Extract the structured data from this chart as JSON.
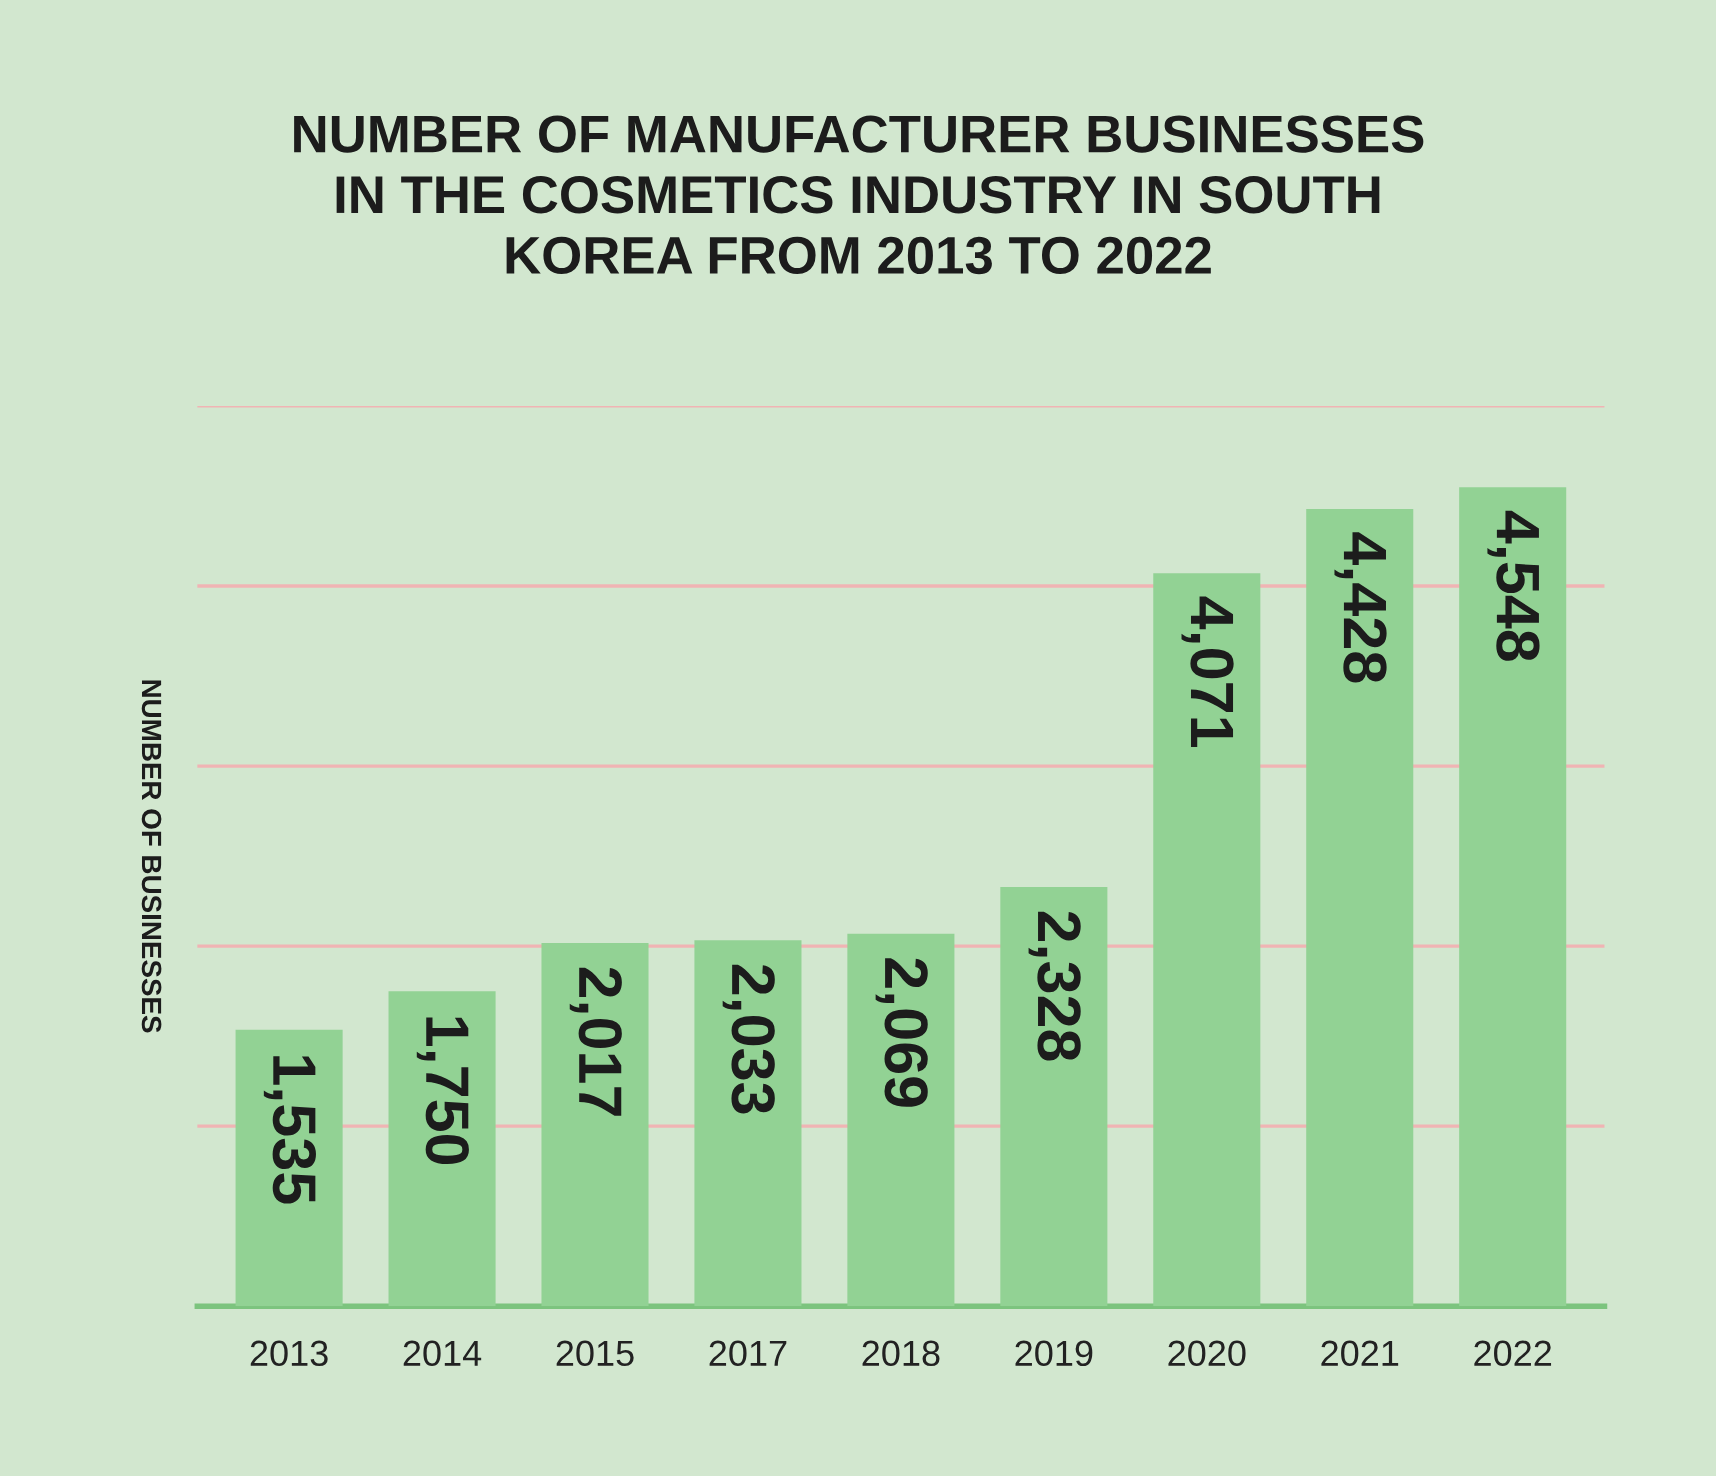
{
  "chart_data": {
    "type": "bar",
    "title": "NUMBER OF MANUFACTURER BUSINESSES\nIN THE COSMETICS INDUSTRY IN SOUTH\nKOREA FROM 2013 TO 2022",
    "ylabel": "NUMBER OF BUSINESSES",
    "categories": [
      "2013",
      "2014",
      "2015",
      "2017",
      "2018",
      "2019",
      "2020",
      "2021",
      "2022"
    ],
    "values": [
      1535,
      1750,
      2017,
      2033,
      2069,
      2328,
      4071,
      4428,
      4548
    ],
    "value_labels": [
      "1,535",
      "1,750",
      "2,017",
      "2,033",
      "2,069",
      "2,328",
      "4,071",
      "4,428",
      "4,548"
    ],
    "color": "#92d294",
    "ylim": [
      0,
      5000
    ],
    "yticks": [
      {
        "value": 0,
        "label": null
      },
      {
        "value": 1000,
        "label": null
      },
      {
        "value": 2000,
        "label": null
      },
      {
        "value": 3000,
        "label": null
      },
      {
        "value": 4000,
        "label": null
      },
      {
        "value": 5000,
        "label": null
      }
    ],
    "tick_labels": "x",
    "grid": "y",
    "legend": false
  }
}
